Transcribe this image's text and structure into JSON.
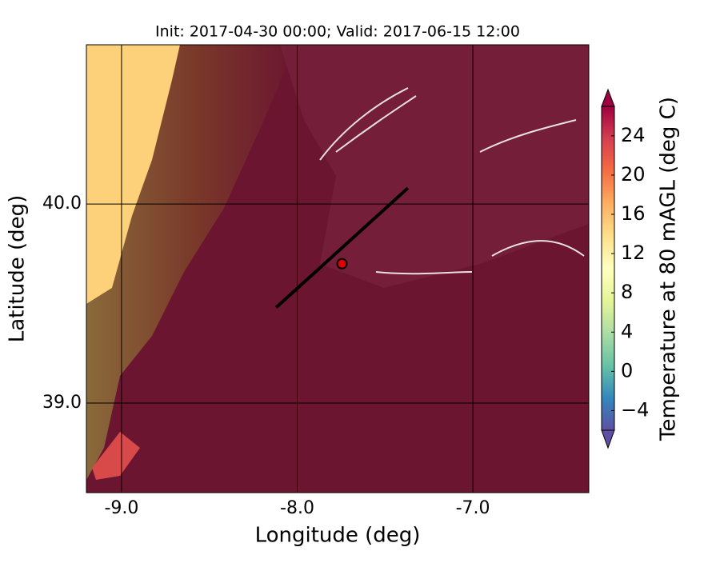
{
  "chart_data": {
    "type": "contour_map",
    "title": "Init: 2017-04-30 00:00; Valid: 2017-06-15 12:00",
    "x_label": "Longitude (deg)",
    "y_label": "Latitude (deg)",
    "xlim": [
      -9.2,
      -6.34
    ],
    "ylim": [
      38.55,
      40.8
    ],
    "xticks": [
      {
        "value": -9,
        "label": "-9.0"
      },
      {
        "value": -8,
        "label": "-8.0"
      },
      {
        "value": -7,
        "label": "-7.0"
      }
    ],
    "yticks": [
      {
        "value": 39,
        "label": "39.0"
      },
      {
        "value": 40,
        "label": "40.0"
      }
    ],
    "grid": true,
    "point": {
      "lon": -7.745,
      "lat": 39.7,
      "color": "#e00000"
    },
    "transect": {
      "lon": [
        -8.12,
        -7.37
      ],
      "lat": [
        39.48,
        40.08
      ],
      "color": "#000000"
    },
    "colorbar": {
      "label": "Temperature at 80 mAGL (deg C)",
      "clim": [
        -6,
        27
      ],
      "ticks": [
        {
          "value": -4,
          "label": "−4"
        },
        0,
        4,
        8,
        12,
        16,
        20,
        24
      ]
    }
  }
}
